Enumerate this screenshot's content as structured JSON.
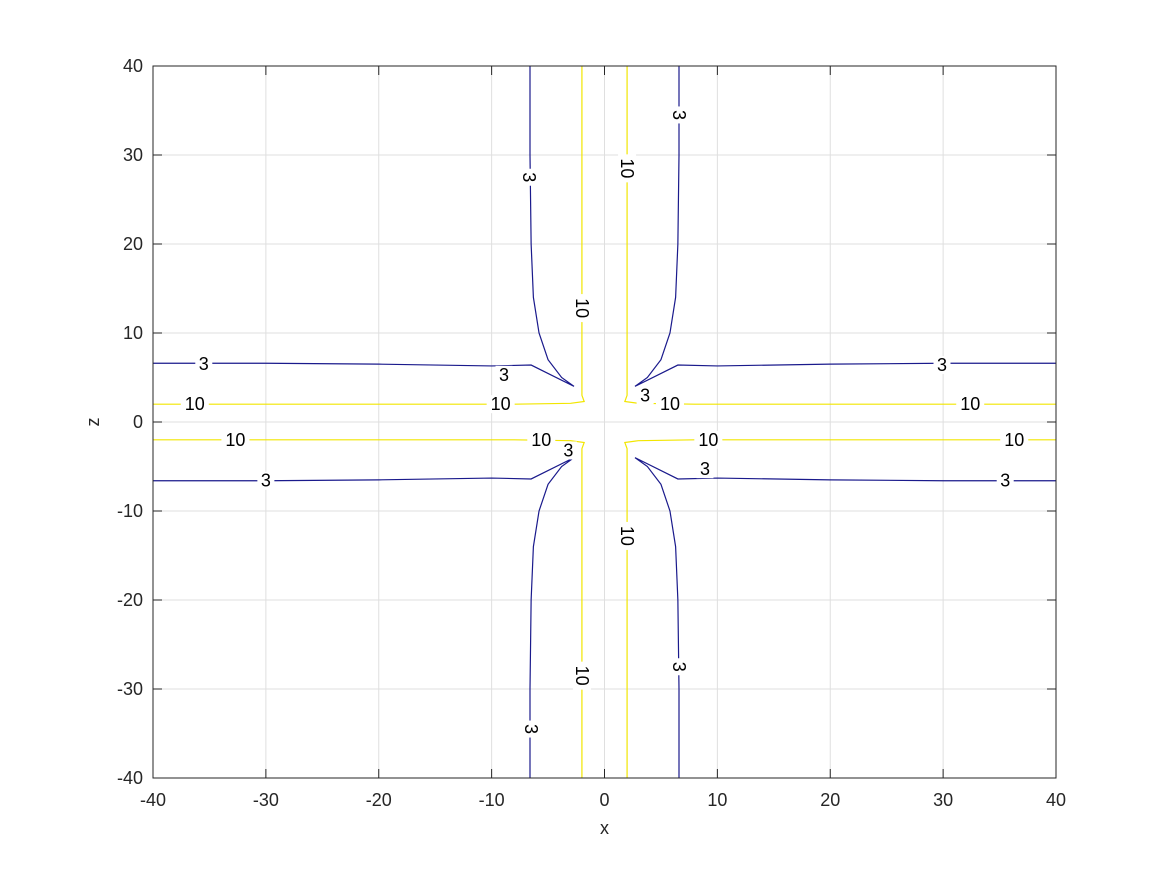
{
  "chart_data": {
    "type": "contour",
    "title": "",
    "xlabel": "x",
    "ylabel": "z",
    "xlim": [
      -40,
      40
    ],
    "ylim": [
      -40,
      40
    ],
    "xticks": [
      -40,
      -30,
      -20,
      -10,
      0,
      10,
      20,
      30,
      40
    ],
    "yticks": [
      -40,
      -30,
      -20,
      -10,
      0,
      10,
      20,
      30,
      40
    ],
    "grid": true,
    "colors": {
      "level_3": "#1a1a8c",
      "level_10": "#f2e600",
      "axes": "#262626",
      "grid": "#dfdfdf"
    },
    "levels": [
      {
        "value": 3,
        "label": "3",
        "curves": [
          [
            [
              -6.6,
              40
            ],
            [
              -6.6,
              30
            ],
            [
              -6.5,
              20
            ],
            [
              -6.3,
              14
            ],
            [
              -5.8,
              10
            ],
            [
              -5,
              7
            ],
            [
              -3.8,
              5
            ],
            [
              -2.7,
              4
            ],
            [
              -6.5,
              6.4
            ],
            [
              -10,
              6.3
            ],
            [
              -20,
              6.5
            ],
            [
              -30,
              6.6
            ],
            [
              -40,
              6.6
            ]
          ],
          [
            [
              6.6,
              40
            ],
            [
              6.6,
              30
            ],
            [
              6.5,
              20
            ],
            [
              6.3,
              14
            ],
            [
              5.8,
              10
            ],
            [
              5,
              7
            ],
            [
              3.8,
              5
            ],
            [
              2.7,
              4
            ],
            [
              6.5,
              6.4
            ],
            [
              10,
              6.3
            ],
            [
              20,
              6.5
            ],
            [
              30,
              6.6
            ],
            [
              40,
              6.6
            ]
          ],
          [
            [
              -6.6,
              -40
            ],
            [
              -6.6,
              -30
            ],
            [
              -6.5,
              -20
            ],
            [
              -6.3,
              -14
            ],
            [
              -5.8,
              -10
            ],
            [
              -5,
              -7
            ],
            [
              -3.8,
              -5
            ],
            [
              -2.7,
              -4
            ],
            [
              -6.5,
              -6.4
            ],
            [
              -10,
              -6.3
            ],
            [
              -20,
              -6.5
            ],
            [
              -30,
              -6.6
            ],
            [
              -40,
              -6.6
            ]
          ],
          [
            [
              6.6,
              -40
            ],
            [
              6.6,
              -30
            ],
            [
              6.5,
              -20
            ],
            [
              6.3,
              -14
            ],
            [
              5.8,
              -10
            ],
            [
              5,
              -7
            ],
            [
              3.8,
              -5
            ],
            [
              2.7,
              -4
            ],
            [
              6.5,
              -6.4
            ],
            [
              10,
              -6.3
            ],
            [
              20,
              -6.5
            ],
            [
              30,
              -6.6
            ],
            [
              40,
              -6.6
            ]
          ]
        ],
        "labels_at": [
          [
            -6.7,
            27.5
          ],
          [
            6.6,
            34.5
          ],
          [
            -35.5,
            6.5
          ],
          [
            -8.9,
            5.3
          ],
          [
            3.6,
            3
          ],
          [
            29.9,
            6.4
          ],
          [
            -3.2,
            -3.2
          ],
          [
            8.9,
            -5.3
          ],
          [
            -30,
            -6.6
          ],
          [
            35.5,
            -6.6
          ],
          [
            -6.5,
            -34.5
          ],
          [
            6.6,
            -27.5
          ]
        ]
      },
      {
        "value": 10,
        "label": "10",
        "curves": [
          [
            [
              -2,
              40
            ],
            [
              -2,
              20
            ],
            [
              -2,
              8
            ],
            [
              -2,
              3
            ],
            [
              -1.8,
              2.3
            ],
            [
              -3,
              2.1
            ],
            [
              -8,
              2
            ],
            [
              -20,
              2
            ],
            [
              -40,
              2
            ]
          ],
          [
            [
              2,
              40
            ],
            [
              2,
              20
            ],
            [
              2,
              8
            ],
            [
              2,
              3
            ],
            [
              1.8,
              2.3
            ],
            [
              3,
              2.1
            ],
            [
              8,
              2
            ],
            [
              20,
              2
            ],
            [
              40,
              2
            ]
          ],
          [
            [
              -2,
              -40
            ],
            [
              -2,
              -20
            ],
            [
              -2,
              -8
            ],
            [
              -2,
              -3
            ],
            [
              -1.8,
              -2.3
            ],
            [
              -3,
              -2.1
            ],
            [
              -8,
              -2
            ],
            [
              -20,
              -2
            ],
            [
              -40,
              -2
            ]
          ],
          [
            [
              2,
              -40
            ],
            [
              2,
              -20
            ],
            [
              2,
              -8
            ],
            [
              2,
              -3
            ],
            [
              1.8,
              -2.3
            ],
            [
              3,
              -2.1
            ],
            [
              8,
              -2
            ],
            [
              20,
              -2
            ],
            [
              40,
              -2
            ]
          ]
        ],
        "labels_at": [
          [
            -36.3,
            2
          ],
          [
            -9.2,
            2
          ],
          [
            5.8,
            2
          ],
          [
            32.4,
            2
          ],
          [
            -32.7,
            -2
          ],
          [
            -5.6,
            -2
          ],
          [
            9.2,
            -2
          ],
          [
            36.3,
            -2
          ],
          [
            2,
            28.5
          ],
          [
            -2,
            12.8
          ],
          [
            2,
            -12.8
          ],
          [
            -2,
            -28.5
          ]
        ]
      }
    ]
  }
}
